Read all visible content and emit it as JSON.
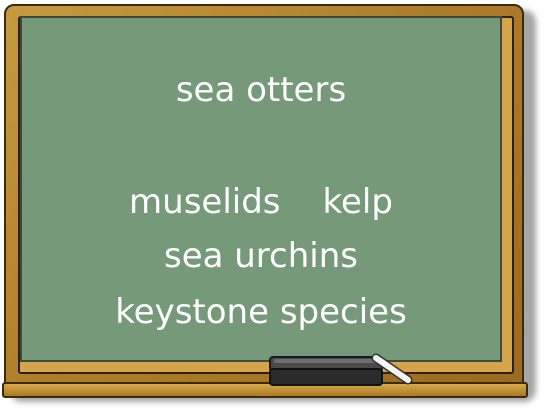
{
  "board": {
    "line1": "sea otters",
    "line2_left": "muselids",
    "line2_right": "kelp",
    "line3": "sea urchins",
    "line4": "keystone species"
  },
  "colors": {
    "board": "#76997a",
    "frame": "#b98a34",
    "chalk_text": "#ffffff",
    "eraser": "#2b2b2b"
  },
  "icons": {
    "eraser": "chalkboard-eraser-icon",
    "chalk": "chalk-stick-icon"
  }
}
